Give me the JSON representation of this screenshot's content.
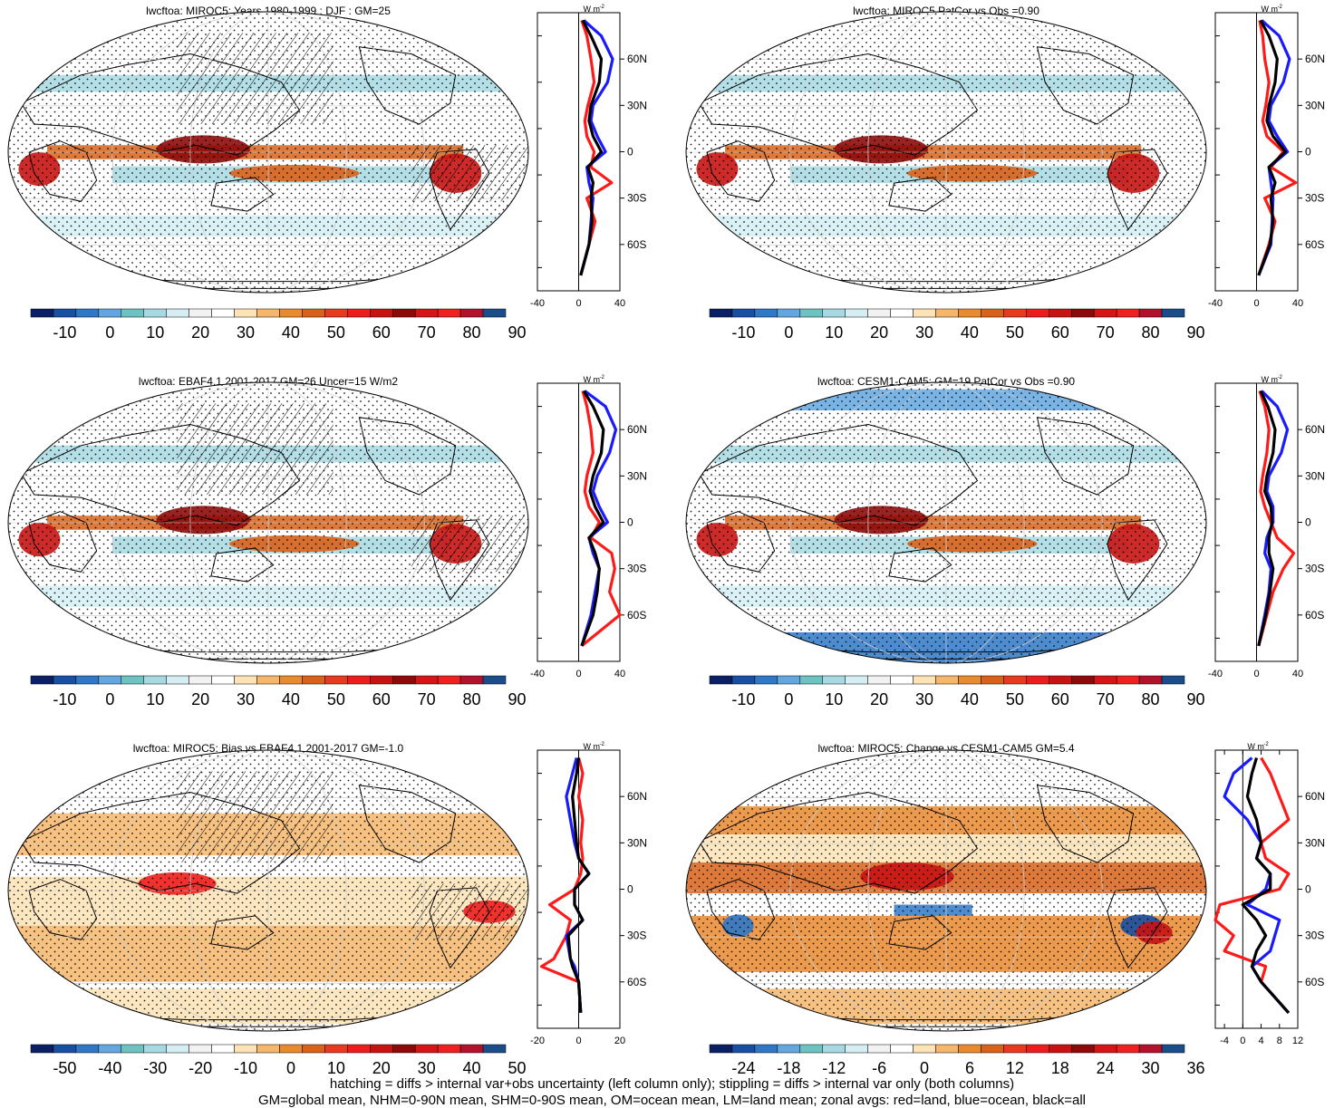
{
  "footer": {
    "line1": "hatching = diffs > internal var+obs uncertainty (left column only); stippling = diffs > internal var only (both columns)",
    "line2": "GM=global mean, NHM=0-90N mean, SHM=0-90S mean, OM=ocean mean, LM=land mean; zonal avgs: red=land, blue=ocean, black=all"
  },
  "profile_unit": "W m",
  "profile_unit_exp": "-2",
  "lat_ticks": [
    "60N",
    "30N",
    "0",
    "30S",
    "60S"
  ],
  "colorbars": {
    "absolute": {
      "labels": [
        "-10",
        "0",
        "10",
        "20",
        "30",
        "40",
        "50",
        "60",
        "70",
        "80",
        "90"
      ],
      "colors": [
        "#0b1f66",
        "#174fa2",
        "#2f78c8",
        "#62a7e0",
        "#6cc3c2",
        "#a7d9e3",
        "#d4eef4",
        "#f2f2f2",
        "#ffffff",
        "#fde3b6",
        "#f6b66c",
        "#e98a2f",
        "#d8621a",
        "#e83a1f",
        "#ee1d1d",
        "#c81313",
        "#8e0a0a",
        "#d61616",
        "#ee2020",
        "#b3122c",
        "#1b4d8a"
      ]
    },
    "bias": {
      "labels": [
        "-50",
        "-40",
        "-30",
        "-20",
        "-10",
        "0",
        "10",
        "20",
        "30",
        "40",
        "50"
      ],
      "colors": [
        "#0b1f66",
        "#174fa2",
        "#2f78c8",
        "#62a7e0",
        "#6cc3c2",
        "#a7d9e3",
        "#d4eef4",
        "#f2f2f2",
        "#ffffff",
        "#fde3b6",
        "#f6b66c",
        "#e98a2f",
        "#d8621a",
        "#e83a1f",
        "#ee1d1d",
        "#c81313",
        "#8e0a0a",
        "#d61616",
        "#ee2020",
        "#b3122c",
        "#1b4d8a"
      ]
    },
    "change": {
      "labels": [
        "-24",
        "-18",
        "-12",
        "-6",
        "0",
        "6",
        "12",
        "18",
        "24",
        "30",
        "36"
      ],
      "colors": [
        "#0b1f66",
        "#174fa2",
        "#2f78c8",
        "#62a7e0",
        "#6cc3c2",
        "#a7d9e3",
        "#d4eef4",
        "#f2f2f2",
        "#ffffff",
        "#fde3b6",
        "#f6b66c",
        "#e98a2f",
        "#d8621a",
        "#e83a1f",
        "#ee1d1d",
        "#c81313",
        "#8e0a0a",
        "#d61616",
        "#ee2020",
        "#b3122c",
        "#1b4d8a"
      ]
    }
  },
  "series_colors": {
    "land": "#ff1a1a",
    "ocean": "#1a1aff",
    "all": "#000000"
  },
  "chart_data": [
    {
      "type": "heatmap",
      "title": "lwcftoa: MIROC5: Years 1980-1999 : DJF : GM=25",
      "colorbar": "absolute",
      "hatching": true,
      "profile": {
        "type": "line",
        "xlim": [
          -40,
          40
        ],
        "xticks": [
          "-40",
          "0",
          "40"
        ],
        "ylim": [
          -90,
          90
        ],
        "lat": [
          -80,
          -60,
          -45,
          -30,
          -20,
          -10,
          0,
          10,
          20,
          30,
          45,
          60,
          75,
          85
        ],
        "series": [
          {
            "name": "land",
            "values": [
              2,
              10,
              16,
              8,
              32,
              12,
              15,
              8,
              6,
              9,
              15,
              12,
              8,
              3
            ]
          },
          {
            "name": "ocean",
            "values": [
              2,
              10,
              12,
              14,
              10,
              8,
              26,
              18,
              12,
              14,
              28,
              33,
              22,
              5
            ]
          },
          {
            "name": "all",
            "values": [
              2,
              10,
              13,
              12,
              14,
              9,
              22,
              14,
              10,
              12,
              20,
              22,
              12,
              4
            ]
          }
        ]
      }
    },
    {
      "type": "heatmap",
      "title": "lwcftoa: MIROC5 PatCor vs Obs =0.90",
      "colorbar": "absolute",
      "hatching": false,
      "profile": {
        "type": "line",
        "xlim": [
          -40,
          40
        ],
        "xticks": [
          "-40",
          "0",
          "40"
        ],
        "ylim": [
          -90,
          90
        ],
        "lat": [
          -80,
          -60,
          -45,
          -30,
          -20,
          -10,
          0,
          10,
          20,
          30,
          45,
          60,
          75,
          85
        ],
        "series": [
          {
            "name": "land",
            "values": [
              2,
              12,
              18,
              8,
              38,
              14,
              26,
              10,
              6,
              9,
              12,
              8,
              6,
              3
            ]
          },
          {
            "name": "ocean",
            "values": [
              2,
              14,
              15,
              16,
              14,
              12,
              30,
              20,
              12,
              14,
              26,
              32,
              22,
              5
            ]
          },
          {
            "name": "all",
            "values": [
              2,
              13,
              16,
              14,
              18,
              12,
              28,
              16,
              10,
              12,
              18,
              20,
              12,
              4
            ]
          }
        ]
      }
    },
    {
      "type": "heatmap",
      "title": "lwcftoa: EBAF4.1 2001-2017 GM=26 Uncer=15 W/m2",
      "colorbar": "absolute",
      "hatching": true,
      "profile": {
        "type": "line",
        "xlim": [
          -40,
          40
        ],
        "xticks": [
          "-40",
          "0",
          "40"
        ],
        "ylim": [
          -90,
          90
        ],
        "lat": [
          -80,
          -60,
          -45,
          -30,
          -20,
          -10,
          0,
          10,
          20,
          30,
          45,
          60,
          75,
          85
        ],
        "series": [
          {
            "name": "land",
            "values": [
              3,
              40,
              30,
              35,
              32,
              12,
              20,
              10,
              6,
              8,
              14,
              12,
              8,
              4
            ]
          },
          {
            "name": "ocean",
            "values": [
              3,
              12,
              16,
              20,
              14,
              10,
              28,
              20,
              14,
              18,
              30,
              36,
              26,
              6
            ]
          },
          {
            "name": "all",
            "values": [
              3,
              14,
              18,
              20,
              16,
              10,
              24,
              16,
              11,
              14,
              22,
              24,
              14,
              5
            ]
          }
        ]
      }
    },
    {
      "type": "heatmap",
      "title": "lwcftoa: CESM1-CAM5: GM=19 PatCor vs Obs =0.90",
      "colorbar": "absolute",
      "hatching": false,
      "profile": {
        "type": "line",
        "xlim": [
          -40,
          40
        ],
        "xticks": [
          "-40",
          "0",
          "40"
        ],
        "ylim": [
          -90,
          90
        ],
        "lat": [
          -80,
          -60,
          -45,
          -30,
          -20,
          -10,
          0,
          10,
          20,
          30,
          45,
          60,
          75,
          85
        ],
        "series": [
          {
            "name": "land",
            "values": [
              2,
              10,
              16,
              26,
              36,
              20,
              14,
              8,
              4,
              6,
              10,
              12,
              8,
              3
            ]
          },
          {
            "name": "ocean",
            "values": [
              2,
              8,
              12,
              14,
              8,
              10,
              16,
              16,
              10,
              12,
              24,
              30,
              20,
              5
            ]
          },
          {
            "name": "all",
            "values": [
              2,
              9,
              13,
              16,
              12,
              12,
              15,
              14,
              8,
              10,
              16,
              18,
              11,
              4
            ]
          }
        ]
      }
    },
    {
      "type": "heatmap",
      "title": "lwcftoa: MIROC5: Bias vs EBAF4.1 2001-2017 GM=-1.0",
      "colorbar": "bias",
      "hatching": true,
      "profile": {
        "type": "line",
        "xlim": [
          -20,
          20
        ],
        "xticks": [
          "-20",
          "0",
          "20"
        ],
        "ylim": [
          -90,
          90
        ],
        "lat": [
          -80,
          -60,
          -50,
          -45,
          -30,
          -20,
          -10,
          0,
          10,
          20,
          30,
          45,
          60,
          75,
          85
        ],
        "series": [
          {
            "name": "land",
            "values": [
              1,
              0,
              -18,
              -12,
              -6,
              -4,
              -14,
              -2,
              1,
              2,
              1,
              2,
              0,
              2,
              0
            ]
          },
          {
            "name": "ocean",
            "values": [
              1,
              0,
              -2,
              -4,
              -6,
              2,
              -2,
              -2,
              5,
              0,
              -2,
              -4,
              -6,
              -3,
              -1
            ]
          },
          {
            "name": "all",
            "values": [
              1,
              0,
              -3,
              -4,
              -5,
              2,
              -2,
              -2,
              5,
              0,
              -1,
              -2,
              -3,
              -1,
              0
            ]
          }
        ]
      }
    },
    {
      "type": "heatmap",
      "title": "lwcftoa: MIROC5: Change vs CESM1-CAM5 GM=5.4",
      "colorbar": "change",
      "hatching": false,
      "profile": {
        "type": "line",
        "xlim": [
          -6,
          12
        ],
        "xticks": [
          "-4",
          "0",
          "4",
          "8",
          "12"
        ],
        "ylim": [
          -90,
          90
        ],
        "lat": [
          -80,
          -60,
          -50,
          -40,
          -30,
          -20,
          -10,
          0,
          10,
          20,
          30,
          45,
          60,
          75,
          85
        ],
        "series": [
          {
            "name": "land",
            "values": [
              10,
              4,
              5,
              -4,
              -2,
              -6,
              -5,
              8,
              10,
              5,
              4,
              10,
              8,
              6,
              4
            ]
          },
          {
            "name": "ocean",
            "values": [
              10,
              4,
              2,
              6,
              7,
              8,
              1,
              5,
              6,
              3,
              4,
              1,
              -4,
              -2,
              2
            ]
          },
          {
            "name": "all",
            "values": [
              10,
              4,
              2,
              3,
              5,
              3,
              0,
              6,
              6,
              3,
              4,
              3,
              1,
              2,
              3
            ]
          }
        ]
      }
    }
  ]
}
